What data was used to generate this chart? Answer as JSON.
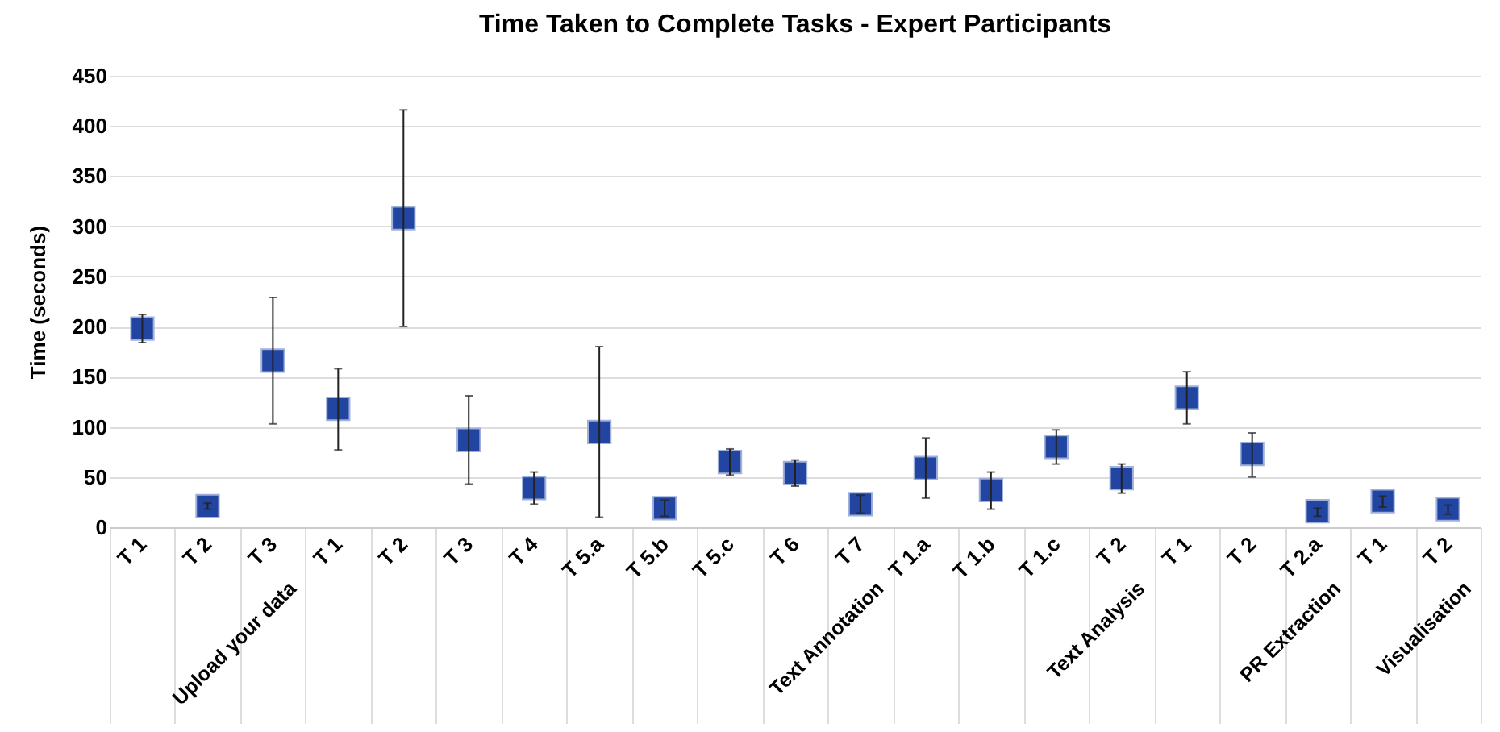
{
  "chart_data": {
    "type": "scatter",
    "title": "Time Taken to Complete Tasks - Expert Participants",
    "ylabel": "Time (seconds)",
    "categories": [
      "T 1",
      "T 2",
      "T 3",
      "T 1",
      "T 2",
      "T 3",
      "T 4",
      "T 5.a",
      "T 5.b",
      "T 5.c",
      "T 6",
      "T 7",
      "T 1.a",
      "T 1.b",
      "T 1.c",
      "T 2",
      "T 1",
      "T 2",
      "T 2.a",
      "T 1",
      "T 2"
    ],
    "series": [
      {
        "color": "#2145a0",
        "values": [
          198,
          21,
          166,
          118,
          308,
          87,
          39,
          95,
          19,
          65,
          54,
          23,
          59,
          37,
          80,
          49,
          129,
          73,
          16,
          26,
          18
        ],
        "errors": [
          [
            184,
            212
          ],
          [
            18,
            24
          ],
          [
            103,
            229
          ],
          [
            77,
            158
          ],
          [
            200,
            416
          ],
          [
            43,
            131
          ],
          [
            23,
            55
          ],
          [
            10,
            180
          ],
          [
            11,
            27
          ],
          [
            52,
            78
          ],
          [
            41,
            67
          ],
          [
            14,
            32
          ],
          [
            29,
            89
          ],
          [
            18,
            55
          ],
          [
            63,
            97
          ],
          [
            34,
            63
          ],
          [
            103,
            155
          ],
          [
            50,
            94
          ],
          [
            11,
            19
          ],
          [
            20,
            31
          ],
          [
            13,
            22
          ]
        ]
      }
    ],
    "annotations": [
      "Upload your data",
      "Text Annotation",
      "Text Analysis",
      "PR Extraction",
      "Visualisation"
    ],
    "ylim": [
      0,
      450
    ],
    "yticks": [
      0,
      50,
      100,
      150,
      200,
      250,
      300,
      350,
      400,
      450
    ],
    "grid": "y",
    "marker": "square"
  }
}
